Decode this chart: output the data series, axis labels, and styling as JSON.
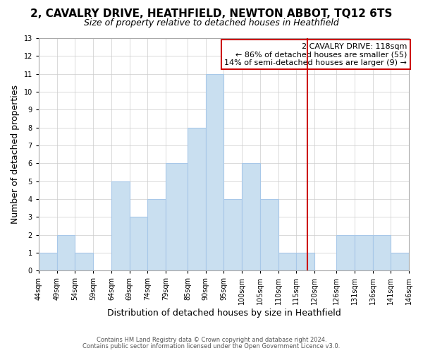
{
  "title": "2, CAVALRY DRIVE, HEATHFIELD, NEWTON ABBOT, TQ12 6TS",
  "subtitle": "Size of property relative to detached houses in Heathfield",
  "xlabel": "Distribution of detached houses by size in Heathfield",
  "ylabel": "Number of detached properties",
  "bin_lefts": [
    44,
    49,
    54,
    59,
    64,
    69,
    74,
    79,
    85,
    90,
    95,
    100,
    105,
    110,
    115,
    120,
    126,
    131,
    136,
    141
  ],
  "bin_rights": [
    49,
    54,
    59,
    64,
    69,
    74,
    79,
    85,
    90,
    95,
    100,
    105,
    110,
    115,
    120,
    126,
    131,
    136,
    141,
    146
  ],
  "bar_heights": [
    1,
    2,
    1,
    0,
    5,
    3,
    4,
    6,
    8,
    11,
    4,
    6,
    4,
    1,
    1,
    0,
    2,
    2,
    2,
    1
  ],
  "tick_values": [
    44,
    49,
    54,
    59,
    64,
    69,
    74,
    79,
    85,
    90,
    95,
    100,
    105,
    110,
    115,
    120,
    126,
    131,
    136,
    141,
    146
  ],
  "bar_color": "#c9dff0",
  "bar_edge_color": "#a8c8e8",
  "grid_color": "#cccccc",
  "vline_x": 118,
  "vline_color": "#cc0000",
  "annotation_title": "2 CAVALRY DRIVE: 118sqm",
  "annotation_line1": "← 86% of detached houses are smaller (55)",
  "annotation_line2": "14% of semi-detached houses are larger (9) →",
  "annotation_box_color": "#ffffff",
  "annotation_box_edge_color": "#cc0000",
  "ylim": [
    0,
    13
  ],
  "xlim": [
    44,
    146
  ],
  "footnote1": "Contains HM Land Registry data © Crown copyright and database right 2024.",
  "footnote2": "Contains public sector information licensed under the Open Government Licence v3.0.",
  "background_color": "#ffffff",
  "title_fontsize": 11,
  "subtitle_fontsize": 9,
  "xlabel_fontsize": 9,
  "ylabel_fontsize": 9,
  "footnote_fontsize": 6,
  "tick_fontsize": 7,
  "annotation_fontsize": 8
}
